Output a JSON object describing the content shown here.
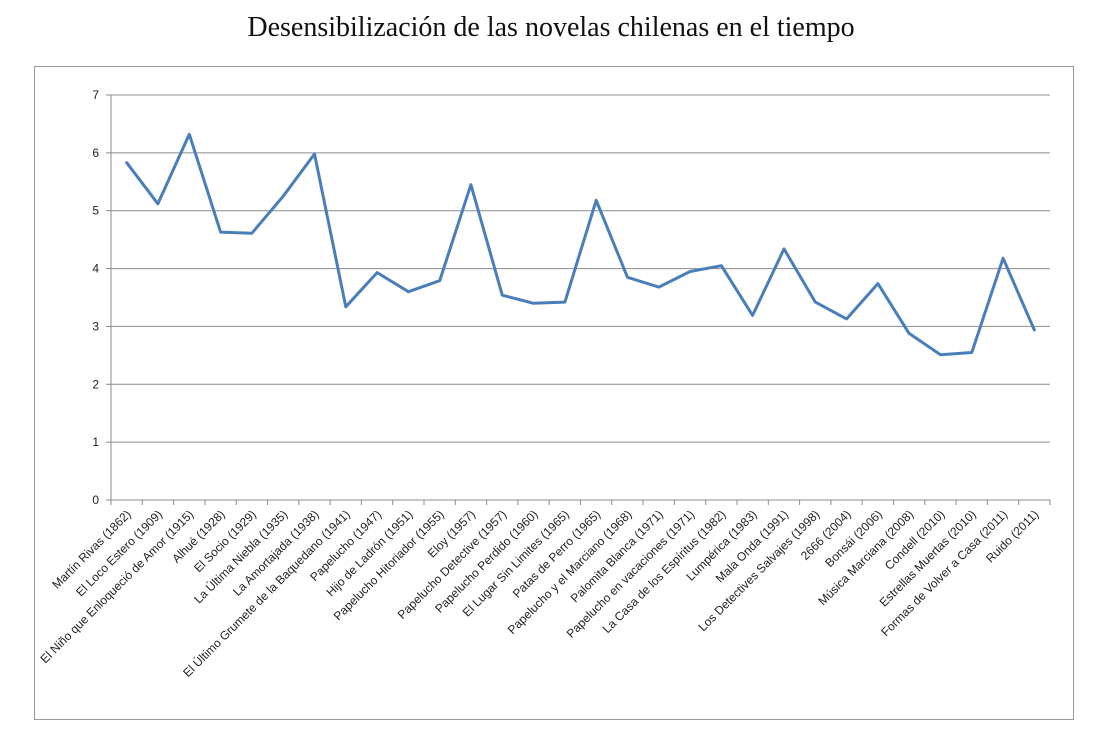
{
  "chart_data": {
    "type": "line",
    "title": "Desensibilización de las novelas chilenas en el tiempo",
    "xlabel": "",
    "ylabel": "",
    "ylim": [
      0,
      7
    ],
    "yticks": [
      0,
      1,
      2,
      3,
      4,
      5,
      6,
      7
    ],
    "grid": true,
    "line_color": "#4a7ebb",
    "categories": [
      "Martín Rivas (1862)",
      "El Loco Estero (1909)",
      "El Niño que Enloqueció de Amor (1915)",
      "Alhué (1928)",
      "El Socio (1929)",
      "La Última Niebla (1935)",
      "La Amortajada (1938)",
      "El Último Grumete de la Baquedano (1941)",
      "Papelucho (1947)",
      "Hijo de Ladrón (1951)",
      "Papelucho Hitoriador (1955)",
      "Eloy (1957)",
      "Papelucho Detective (1957)",
      "Papelucho Perdido (1960)",
      "El Lugar Sin Limites (1965)",
      "Patas de Perro (1965)",
      "Papelucho y el Marciano (1968)",
      "Palomita Blanca (1971)",
      "Papelucho en vacaciones (1971)",
      "La Casa de los Espíritus (1982)",
      "Lumpérica (1983)",
      "Mala Onda (1991)",
      "Los Detectives Salvajes (1998)",
      "2666 (2004)",
      "Bonsái (2006)",
      "Música Marciana (2008)",
      "Condell (2010)",
      "Estrellas Muertas (2010)",
      "Formas de Volver a Casa (2011)",
      "Ruido (2011)"
    ],
    "series": [
      {
        "values": [
          5.83,
          5.12,
          6.32,
          4.63,
          4.61,
          5.25,
          5.98,
          3.34,
          3.93,
          3.6,
          3.79,
          5.45,
          3.54,
          3.4,
          3.42,
          5.18,
          3.85,
          3.68,
          3.95,
          4.05,
          3.19,
          4.34,
          3.42,
          3.13,
          3.74,
          2.88,
          2.51,
          2.55,
          4.18,
          2.94
        ]
      }
    ]
  }
}
